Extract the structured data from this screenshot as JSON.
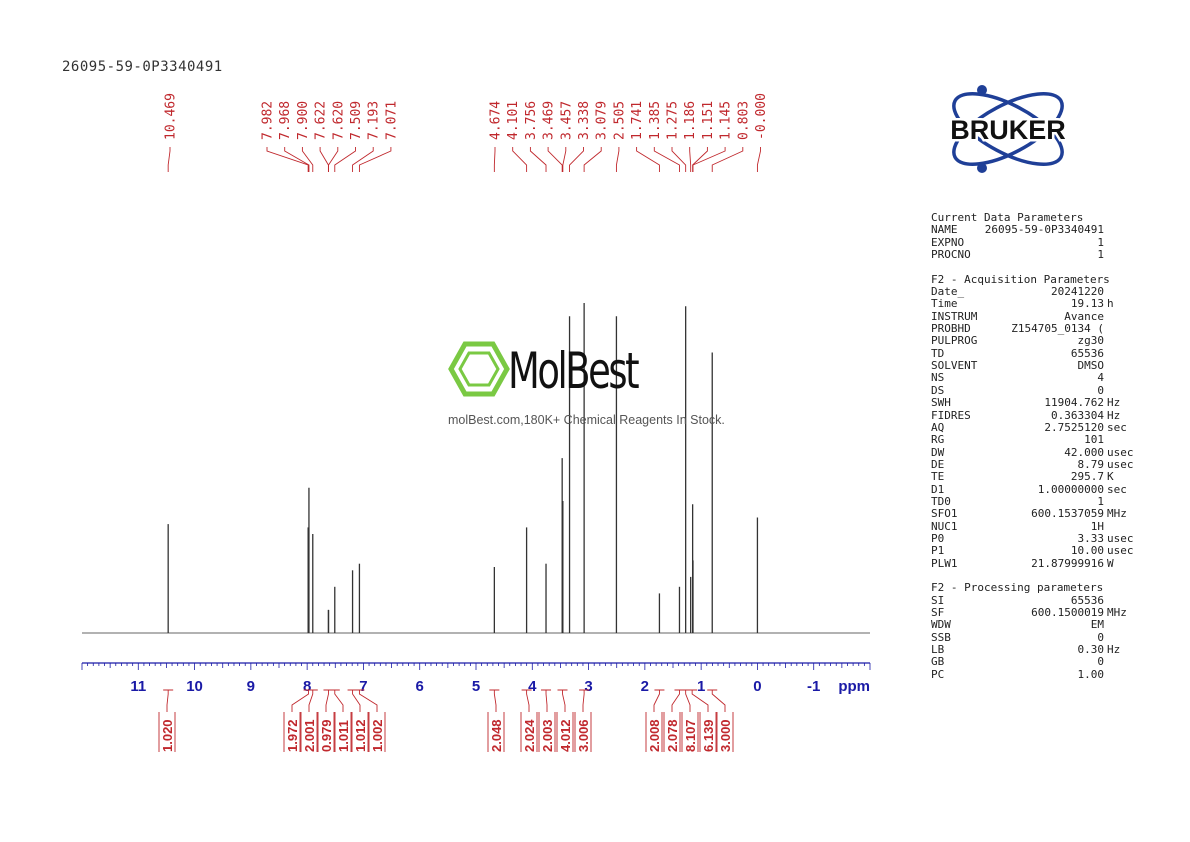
{
  "sample_id": "26095-59-0P3340491",
  "watermark": {
    "brand": "MolBest",
    "tagline": "molBest.com,180K+ Chemical Reagents In Stock."
  },
  "logo": {
    "text": "BRUKER"
  },
  "colors": {
    "axis": "#1a1aa6",
    "peak_labels": "#c0282d",
    "spectrum": "#333333",
    "watermark_green": "#7ac943"
  },
  "chart_data": {
    "type": "line",
    "title": "",
    "xlabel": "ppm",
    "ylabel": "",
    "xlim": [
      12.0,
      -2.0
    ],
    "x_ticks": [
      "11",
      "10",
      "9",
      "8",
      "7",
      "6",
      "5",
      "4",
      "3",
      "2",
      "1",
      "0",
      "-1"
    ],
    "peak_labels": [
      "10.469",
      "7.982",
      "7.968",
      "7.900",
      "7.622",
      "7.620",
      "7.509",
      "7.193",
      "7.071",
      "4.674",
      "4.101",
      "3.756",
      "3.469",
      "3.457",
      "3.338",
      "3.079",
      "2.505",
      "1.741",
      "1.385",
      "1.275",
      "1.186",
      "1.151",
      "1.145",
      "0.803",
      "-0.000"
    ],
    "peaks": [
      {
        "ppm": 10.469,
        "height": 0.33
      },
      {
        "ppm": 7.982,
        "height": 0.32
      },
      {
        "ppm": 7.968,
        "height": 0.44
      },
      {
        "ppm": 7.9,
        "height": 0.3
      },
      {
        "ppm": 7.622,
        "height": 0.07
      },
      {
        "ppm": 7.62,
        "height": 0.07
      },
      {
        "ppm": 7.509,
        "height": 0.14
      },
      {
        "ppm": 7.193,
        "height": 0.19
      },
      {
        "ppm": 7.071,
        "height": 0.21
      },
      {
        "ppm": 4.674,
        "height": 0.2
      },
      {
        "ppm": 4.101,
        "height": 0.32
      },
      {
        "ppm": 3.756,
        "height": 0.21
      },
      {
        "ppm": 3.469,
        "height": 0.53
      },
      {
        "ppm": 3.457,
        "height": 0.4
      },
      {
        "ppm": 3.338,
        "height": 0.96
      },
      {
        "ppm": 3.079,
        "height": 1.0
      },
      {
        "ppm": 2.505,
        "height": 0.96
      },
      {
        "ppm": 1.741,
        "height": 0.12
      },
      {
        "ppm": 1.385,
        "height": 0.14
      },
      {
        "ppm": 1.275,
        "height": 0.99
      },
      {
        "ppm": 1.186,
        "height": 0.17
      },
      {
        "ppm": 1.151,
        "height": 0.39
      },
      {
        "ppm": 1.145,
        "height": 0.22
      },
      {
        "ppm": 0.803,
        "height": 0.85
      },
      {
        "ppm": 0.0,
        "height": 0.35
      }
    ],
    "integrals": [
      {
        "label": "1.020",
        "ppm": 10.469
      },
      {
        "label": "1.972",
        "ppm": 7.975
      },
      {
        "label": "2.001",
        "ppm": 7.9
      },
      {
        "label": "0.979",
        "ppm": 7.621
      },
      {
        "label": "1.011",
        "ppm": 7.509
      },
      {
        "label": "1.012",
        "ppm": 7.193
      },
      {
        "label": "1.002",
        "ppm": 7.071
      },
      {
        "label": "2.048",
        "ppm": 4.674
      },
      {
        "label": "2.024",
        "ppm": 4.101
      },
      {
        "label": "2.003",
        "ppm": 3.756
      },
      {
        "label": "4.012",
        "ppm": 3.463
      },
      {
        "label": "3.006",
        "ppm": 3.079
      },
      {
        "label": "2.008",
        "ppm": 1.741
      },
      {
        "label": "2.078",
        "ppm": 1.385
      },
      {
        "label": "8.107",
        "ppm": 1.275
      },
      {
        "label": "6.139",
        "ppm": 1.16
      },
      {
        "label": "3.000",
        "ppm": 0.803
      }
    ]
  },
  "parameters": {
    "current": {
      "title": "Current Data Parameters",
      "rows": [
        {
          "name": "NAME",
          "value": "26095-59-0P3340491",
          "unit": ""
        },
        {
          "name": "EXPNO",
          "value": "1",
          "unit": ""
        },
        {
          "name": "PROCNO",
          "value": "1",
          "unit": ""
        }
      ]
    },
    "acquisition": {
      "title": "F2 - Acquisition Parameters",
      "rows": [
        {
          "name": "Date_",
          "value": "20241220",
          "unit": ""
        },
        {
          "name": "Time",
          "value": "19.13",
          "unit": "h"
        },
        {
          "name": "INSTRUM",
          "value": "Avance",
          "unit": ""
        },
        {
          "name": "PROBHD",
          "value": "Z154705_0134 (",
          "unit": ""
        },
        {
          "name": "PULPROG",
          "value": "zg30",
          "unit": ""
        },
        {
          "name": "TD",
          "value": "65536",
          "unit": ""
        },
        {
          "name": "SOLVENT",
          "value": "DMSO",
          "unit": ""
        },
        {
          "name": "NS",
          "value": "4",
          "unit": ""
        },
        {
          "name": "DS",
          "value": "0",
          "unit": ""
        },
        {
          "name": "SWH",
          "value": "11904.762",
          "unit": "Hz"
        },
        {
          "name": "FIDRES",
          "value": "0.363304",
          "unit": "Hz"
        },
        {
          "name": "AQ",
          "value": "2.7525120",
          "unit": "sec"
        },
        {
          "name": "RG",
          "value": "101",
          "unit": ""
        },
        {
          "name": "DW",
          "value": "42.000",
          "unit": "usec"
        },
        {
          "name": "DE",
          "value": "8.79",
          "unit": "usec"
        },
        {
          "name": "TE",
          "value": "295.7",
          "unit": "K"
        },
        {
          "name": "D1",
          "value": "1.00000000",
          "unit": "sec"
        },
        {
          "name": "TD0",
          "value": "1",
          "unit": ""
        },
        {
          "name": "SFO1",
          "value": "600.1537059",
          "unit": "MHz"
        },
        {
          "name": "NUC1",
          "value": "1H",
          "unit": ""
        },
        {
          "name": "P0",
          "value": "3.33",
          "unit": "usec"
        },
        {
          "name": "P1",
          "value": "10.00",
          "unit": "usec"
        },
        {
          "name": "PLW1",
          "value": "21.87999916",
          "unit": "W"
        }
      ]
    },
    "processing": {
      "title": "F2 - Processing parameters",
      "rows": [
        {
          "name": "SI",
          "value": "65536",
          "unit": ""
        },
        {
          "name": "SF",
          "value": "600.1500019",
          "unit": "MHz"
        },
        {
          "name": "WDW",
          "value": "EM",
          "unit": ""
        },
        {
          "name": "SSB",
          "value": "0",
          "unit": ""
        },
        {
          "name": "LB",
          "value": "0.30",
          "unit": "Hz"
        },
        {
          "name": "GB",
          "value": "0",
          "unit": ""
        },
        {
          "name": "PC",
          "value": "1.00",
          "unit": ""
        }
      ]
    }
  }
}
